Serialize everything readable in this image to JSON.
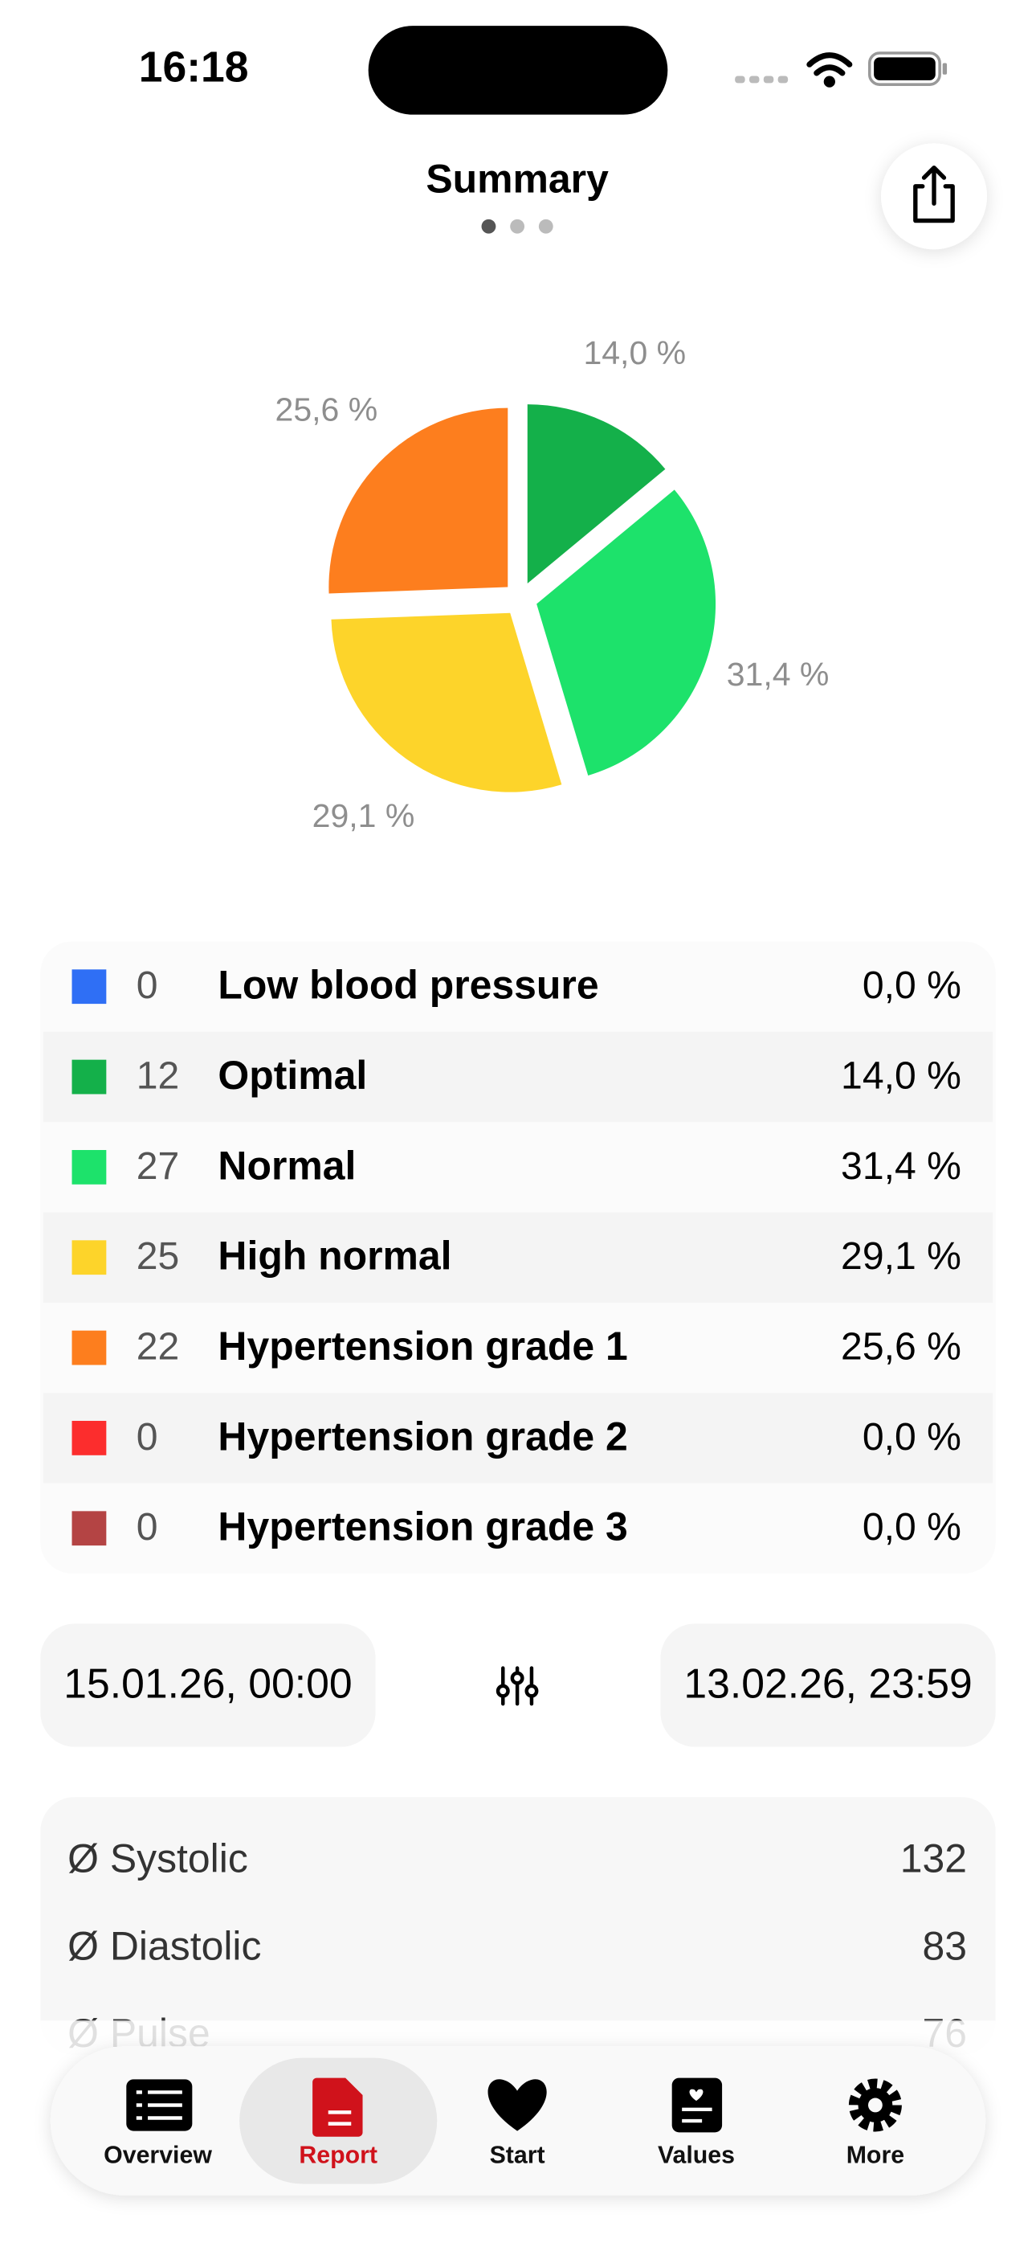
{
  "status_bar": {
    "time": "16:18"
  },
  "header": {
    "title": "Summary"
  },
  "chart_data": {
    "type": "pie",
    "categories": [
      "Low blood pressure",
      "Optimal",
      "Normal",
      "High normal",
      "Hypertension grade 1",
      "Hypertension grade 2",
      "Hypertension grade 3"
    ],
    "values": [
      0,
      14.0,
      31.4,
      29.1,
      25.6,
      0,
      0
    ],
    "value_labels": [
      "0,0 %",
      "14,0 %",
      "31,4 %",
      "29,1 %",
      "25,6 %",
      "0,0 %",
      "0,0 %"
    ],
    "counts": [
      0,
      12,
      27,
      25,
      22,
      0,
      0
    ],
    "colors": [
      "#2f6ff5",
      "#14b04a",
      "#1de26b",
      "#fdd42a",
      "#fd7e1e",
      "#fc2d2d",
      "#b44444"
    ]
  },
  "date_range": {
    "start": "15.01.26, 00:00",
    "end": "13.02.26, 23:59"
  },
  "averages": [
    {
      "label": "Ø Systolic",
      "value": 132
    },
    {
      "label": "Ø Diastolic",
      "value": 83
    },
    {
      "label": "Ø Pulse",
      "value": 76
    }
  ],
  "tab_bar": [
    {
      "label": "Overview"
    },
    {
      "label": "Report"
    },
    {
      "label": "Start"
    },
    {
      "label": "Values"
    },
    {
      "label": "More"
    }
  ]
}
